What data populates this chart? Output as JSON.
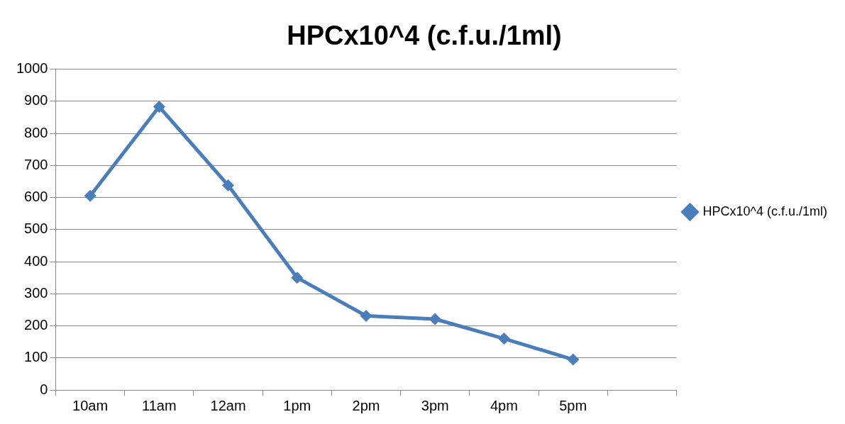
{
  "chart_data": {
    "type": "line",
    "title": "HPCx10^4 (c.f.u./1ml)",
    "categories": [
      "10am",
      "11am",
      "12am",
      "1pm",
      "2pm",
      "3pm",
      "4pm",
      "5pm",
      null
    ],
    "series": [
      {
        "name": "HPCx10^4 (c.f.u./1ml)",
        "color": "#4a7ebb",
        "values": [
          605,
          883,
          638,
          350,
          231,
          221,
          160,
          95,
          null
        ]
      }
    ],
    "ylim": [
      0,
      1000
    ],
    "yticks": [
      0,
      100,
      200,
      300,
      400,
      500,
      600,
      700,
      800,
      900,
      1000
    ],
    "grid": "y",
    "legend": "right",
    "marker": "diamond",
    "line_style": "solid"
  }
}
